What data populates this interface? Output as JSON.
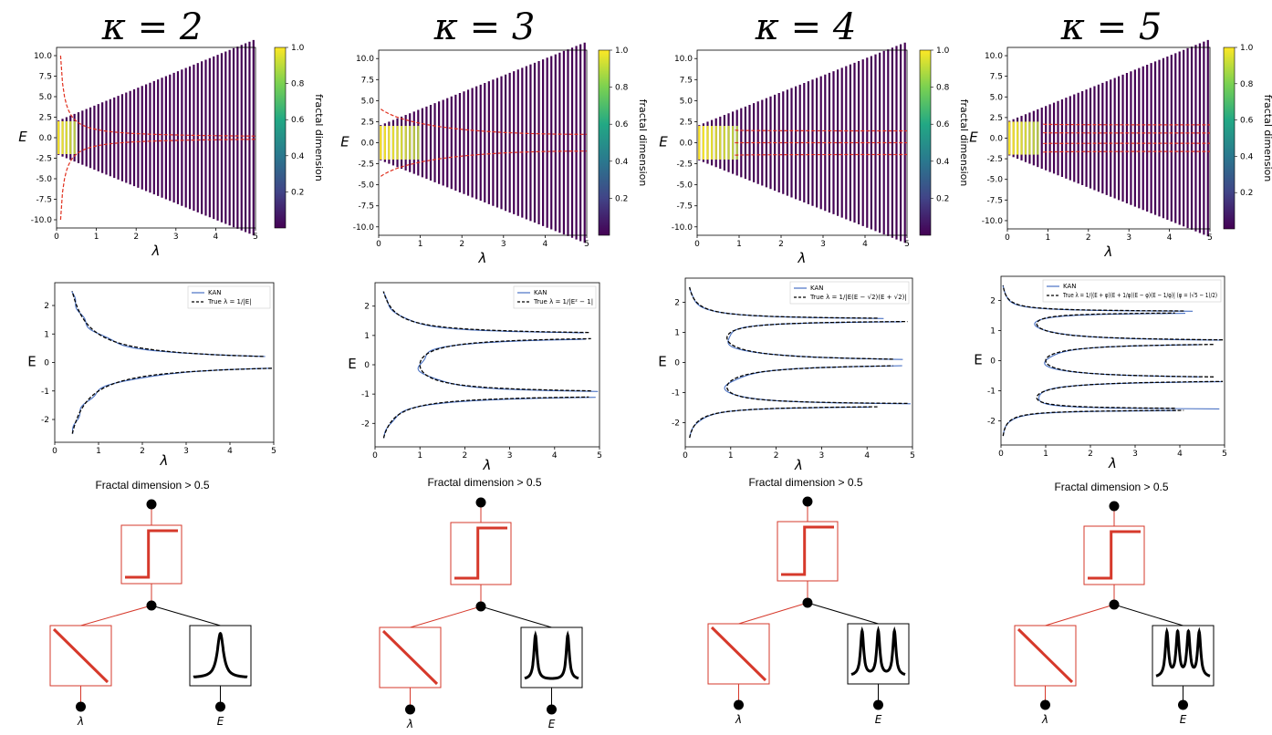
{
  "figure": {
    "columns": [
      {
        "title": "κ = 2",
        "bottom_title": "Fractal dimension > 0.5",
        "line_label": "KAN",
        "true_label": "True λ = 1/|E|",
        "input_labels": [
          "λ",
          "E"
        ]
      },
      {
        "title": "κ = 3",
        "bottom_title": "Fractal dimension > 0.5",
        "line_label": "KAN",
        "true_label": "True λ = 1/|E² − 1|",
        "input_labels": [
          "λ",
          "E"
        ]
      },
      {
        "title": "κ = 4",
        "bottom_title": "Fractal dimension > 0.5",
        "line_label": "KAN",
        "true_label": "True λ = 1/|E(E − √2)(E + √2)|",
        "input_labels": [
          "λ",
          "E"
        ]
      },
      {
        "title": "κ = 5",
        "bottom_title": "Fractal dimension > 0.5",
        "line_label": "KAN",
        "true_label": "True λ = 1/|(E + φ)(E + 1/φ)(E − φ)(E − 1/φ)| (φ = (√5 − 1)/2)",
        "input_labels": [
          "λ",
          "E"
        ]
      }
    ],
    "top_panel": {
      "x_label": "λ",
      "y_label": "E",
      "colorbar_label": "fractal dimension",
      "colorbar_ticks": [
        "0.2",
        "0.4",
        "0.6",
        "0.8",
        "1.0"
      ]
    },
    "mid_panel": {
      "x_label": "λ",
      "y_label": "E"
    },
    "colors": {
      "kan": "#4a72c4",
      "true": "#000000",
      "red_curve": "#e0301e",
      "viridis_low": "#440154",
      "viridis_high": "#fde725"
    }
  },
  "chart_data": [
    {
      "type": "scatter",
      "kappa": 2,
      "title": "κ = 2",
      "xlabel": "λ",
      "ylabel": "E",
      "xlim": [
        0,
        5
      ],
      "ylim": [
        -11,
        11
      ],
      "x_ticks": [
        0,
        1,
        2,
        3,
        4,
        5
      ],
      "y_ticks": [
        10.0,
        7.5,
        5.0,
        2.5,
        0.0,
        -2.5,
        -5.0,
        -7.5,
        -10.0
      ],
      "band_extent": "|E| ≤ 2 + 2λ",
      "high_fractal_region": "|E| ≤ 2 for λ < 0.5",
      "mobility_edges_E": [
        0
      ],
      "colorbar_range": [
        0,
        1
      ]
    },
    {
      "type": "scatter",
      "kappa": 3,
      "title": "κ = 3",
      "xlabel": "λ",
      "ylabel": "E",
      "xlim": [
        0,
        5
      ],
      "ylim": [
        -11,
        11
      ],
      "x_ticks": [
        0,
        1,
        2,
        3,
        4,
        5
      ],
      "y_ticks": [
        10.0,
        7.5,
        5.0,
        2.5,
        0.0,
        -2.5,
        -5.0,
        -7.5,
        -10.0
      ],
      "band_extent": "|E| ≤ 2 + 2λ",
      "high_fractal_region": "|E| ≤ 2 for λ < 1",
      "mobility_edges_E": [
        -1,
        1
      ],
      "colorbar_range": [
        0,
        1
      ]
    },
    {
      "type": "scatter",
      "kappa": 4,
      "title": "κ = 4",
      "xlabel": "λ",
      "ylabel": "E",
      "xlim": [
        0,
        5
      ],
      "ylim": [
        -11,
        11
      ],
      "x_ticks": [
        0,
        1,
        2,
        3,
        4,
        5
      ],
      "y_ticks": [
        10.0,
        7.5,
        5.0,
        2.5,
        0.0,
        -2.5,
        -5.0,
        -7.5,
        -10.0
      ],
      "band_extent": "|E| ≤ 2 + 2λ",
      "high_fractal_region": "|E| ≤ 2 for λ < 1",
      "mobility_edges_E": [
        -1.414,
        0,
        1.414
      ],
      "colorbar_range": [
        0,
        1
      ]
    },
    {
      "type": "scatter",
      "kappa": 5,
      "title": "κ = 5",
      "xlabel": "λ",
      "ylabel": "E",
      "xlim": [
        0,
        5
      ],
      "ylim": [
        -11,
        11
      ],
      "x_ticks": [
        0,
        1,
        2,
        3,
        4,
        5
      ],
      "y_ticks": [
        10.0,
        7.5,
        5.0,
        2.5,
        0.0,
        -2.5,
        -5.0,
        -7.5,
        -10.0
      ],
      "band_extent": "|E| ≤ 2 + 2λ",
      "high_fractal_region": "|E| ≤ 2 for λ < 0.8",
      "mobility_edges_E": [
        -1.618,
        -0.618,
        0.618,
        1.618
      ],
      "colorbar_range": [
        0,
        1
      ]
    },
    {
      "type": "line",
      "kappa": 2,
      "xlabel": "λ",
      "ylabel": "E",
      "xlim": [
        0,
        5
      ],
      "ylim": [
        -2.8,
        2.8
      ],
      "x_ticks": [
        0,
        1,
        2,
        3,
        4,
        5
      ],
      "y_ticks": [
        2,
        1,
        0,
        -1,
        -2
      ],
      "series": [
        {
          "name": "KAN",
          "formula": "λ ≈ 1/|E|"
        },
        {
          "name": "True λ = 1/|E|",
          "formula": "λ = 1/|E|"
        }
      ],
      "legend": "top-right"
    },
    {
      "type": "line",
      "kappa": 3,
      "xlabel": "λ",
      "ylabel": "E",
      "xlim": [
        0,
        5
      ],
      "ylim": [
        -2.8,
        2.8
      ],
      "x_ticks": [
        0,
        1,
        2,
        3,
        4,
        5
      ],
      "y_ticks": [
        2,
        1,
        0,
        -1,
        -2
      ],
      "series": [
        {
          "name": "KAN",
          "formula": "λ ≈ 1/|E² − 1|"
        },
        {
          "name": "True λ = 1/|E² − 1|",
          "formula": "λ = 1/|E² − 1|"
        }
      ],
      "legend": "top-right"
    },
    {
      "type": "line",
      "kappa": 4,
      "xlabel": "λ",
      "ylabel": "E",
      "xlim": [
        0,
        5
      ],
      "ylim": [
        -2.8,
        2.8
      ],
      "x_ticks": [
        0,
        1,
        2,
        3,
        4,
        5
      ],
      "y_ticks": [
        2,
        1,
        0,
        -1,
        -2
      ],
      "series": [
        {
          "name": "KAN",
          "formula": "λ ≈ 1/|E(E − √2)(E + √2)|"
        },
        {
          "name": "True λ = 1/|E(E − √2)(E + √2)|",
          "formula": "λ = 1/|E(E² − 2)|"
        }
      ],
      "legend": "top-right"
    },
    {
      "type": "line",
      "kappa": 5,
      "xlabel": "λ",
      "ylabel": "E",
      "xlim": [
        0,
        5
      ],
      "ylim": [
        -2.8,
        2.8
      ],
      "x_ticks": [
        0,
        1,
        2,
        3,
        4,
        5
      ],
      "y_ticks": [
        2,
        1,
        0,
        -1,
        -2
      ],
      "series": [
        {
          "name": "KAN",
          "formula": "λ ≈ 1/|(E² − φ²)(E² − 1/φ²)|"
        },
        {
          "name": "True λ = 1/|(E + φ)(E + 1/φ)(E − φ)(E − 1/φ)|",
          "formula": "λ = 1/|(E² − φ²)(E² − 1/φ²)|"
        }
      ],
      "legend": "top-right"
    }
  ]
}
